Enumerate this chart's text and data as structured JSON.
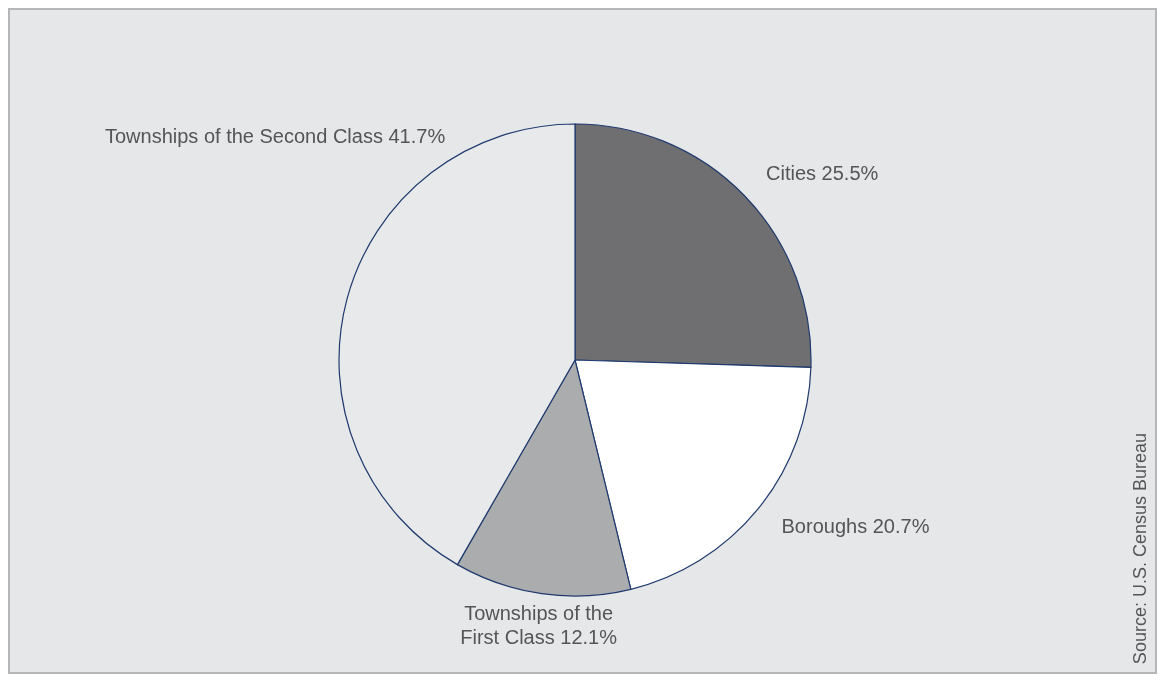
{
  "chart_data": {
    "type": "pie",
    "categories": [
      "Cities",
      "Boroughs",
      "Townships of the First Class",
      "Townships of the Second Class"
    ],
    "values": [
      25.5,
      20.7,
      12.1,
      41.7
    ],
    "value_labels": [
      "25.5%",
      "20.7%",
      "12.1%",
      "41.7%"
    ],
    "colors": [
      "#6f6f71",
      "#ffffff",
      "#abacae",
      "#e8e9eb"
    ],
    "annotations": [
      "Source: U.S. Census Bureau"
    ]
  }
}
